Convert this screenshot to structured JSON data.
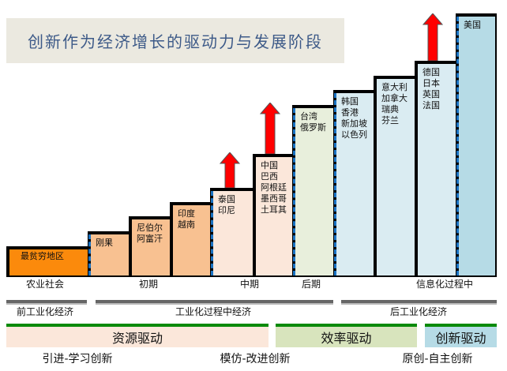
{
  "title": "创新作为经济增长的驱动力与发展阶段",
  "steps": [
    {
      "label": "最贫穷地区",
      "color": "#fb8a0c"
    },
    {
      "label": "刚果",
      "color": "#f8c191"
    },
    {
      "label": "尼伯尔\n阿富汗",
      "color": "#f8c191"
    },
    {
      "label": "印度\n越南",
      "color": "#f8c191"
    },
    {
      "label": "泰国\n印尼",
      "color": "#fbe7da"
    },
    {
      "label": "中国\n巴西\n阿根廷\n墨西哥\n土耳其",
      "color": "#fbe7da"
    },
    {
      "label": "台湾\n俄罗斯",
      "color": "#e8efdc"
    },
    {
      "label": "韩国\n香港\n新加坡\n以色列",
      "color": "#daecf2"
    },
    {
      "label": "意大利\n加拿大\n瑞典\n芬兰",
      "color": "#daecf2"
    },
    {
      "label": "德国\n日本\n英国\n法国",
      "color": "#daecf2"
    },
    {
      "label": "美国",
      "color": "#b6dbe6"
    }
  ],
  "stages": [
    "农业社会",
    "初期",
    "中期",
    "后期",
    "信息化过程中"
  ],
  "economy": [
    "前工业化经济",
    "工业化过程中经济",
    "后工业化经济"
  ],
  "drivers": [
    {
      "label": "资源驱动",
      "color": "#fbe7da"
    },
    {
      "label": "效率驱动",
      "color": "#d8e4bd"
    },
    {
      "label": "创新驱动",
      "color": "#b6dbe6"
    }
  ],
  "innovation": [
    "引进-学习创新",
    "模仿-改进创新",
    "原创-自主创新"
  ]
}
